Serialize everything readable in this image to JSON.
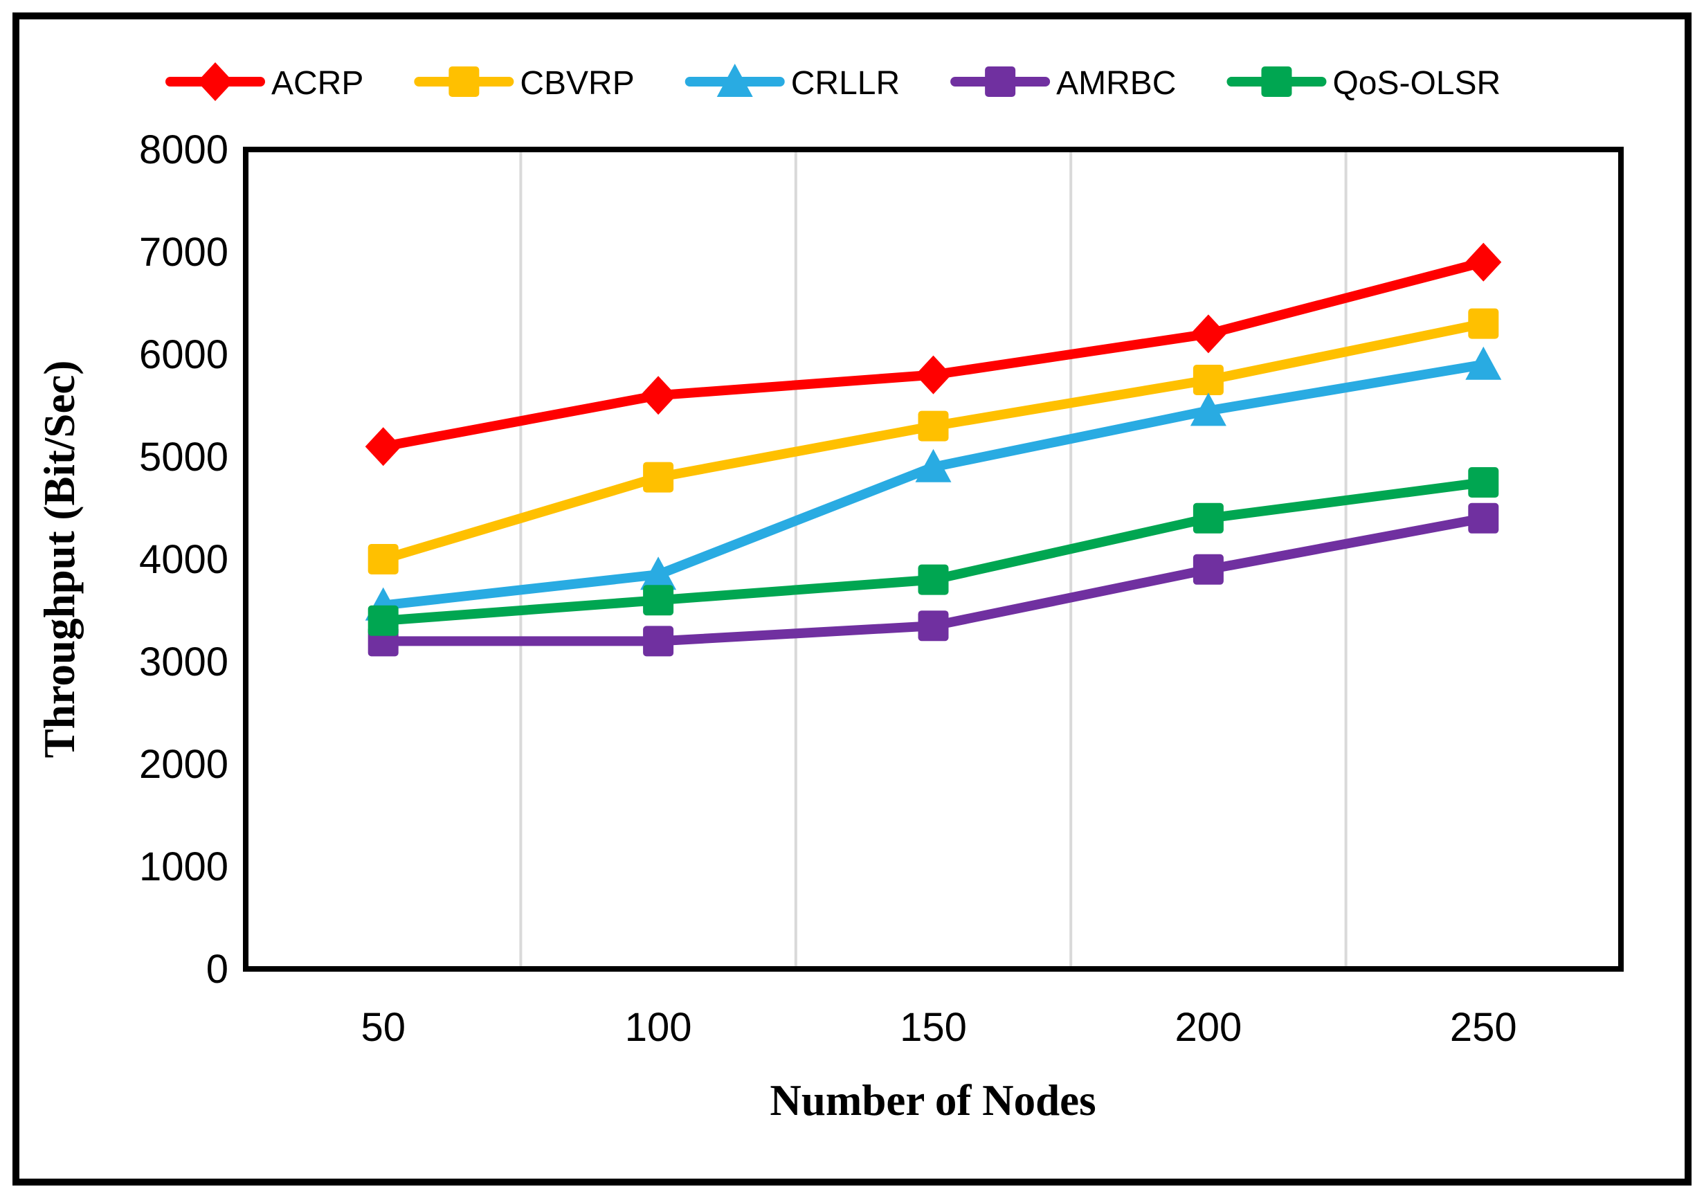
{
  "figure": {
    "background_color": "#FFFFFF",
    "border_color": "#000000"
  },
  "chart_data": {
    "type": "line",
    "title": "",
    "xlabel": "Number of Nodes",
    "ylabel": "Throughput (Bit/Sec)",
    "categories": [
      50,
      100,
      150,
      200,
      250
    ],
    "x_tick_labels": [
      "50",
      "100",
      "150",
      "200",
      "250"
    ],
    "ylim": [
      0,
      8000
    ],
    "y_ticks": [
      0,
      1000,
      2000,
      3000,
      4000,
      5000,
      6000,
      7000,
      8000
    ],
    "grid": "vertical-only",
    "gridline_color": "#D9D9D9",
    "axis_color": "#000000",
    "legend_position": "top",
    "series": [
      {
        "name": "ACRP",
        "color": "#FF0000",
        "marker": "diamond",
        "values": [
          5100,
          5600,
          5800,
          6200,
          6900
        ]
      },
      {
        "name": "CBVRP",
        "color": "#FFC000",
        "marker": "square",
        "values": [
          4000,
          4800,
          5300,
          5750,
          6300
        ]
      },
      {
        "name": "CRLLR",
        "color": "#29ABE2",
        "marker": "triangle",
        "values": [
          3550,
          3850,
          4900,
          5450,
          5900
        ]
      },
      {
        "name": "AMRBC",
        "color": "#7030A0",
        "marker": "square",
        "values": [
          3200,
          3200,
          3350,
          3900,
          4400
        ]
      },
      {
        "name": "QoS-OLSR",
        "color": "#00A651",
        "marker": "square",
        "values": [
          3400,
          3600,
          3800,
          4400,
          4750
        ]
      }
    ]
  }
}
